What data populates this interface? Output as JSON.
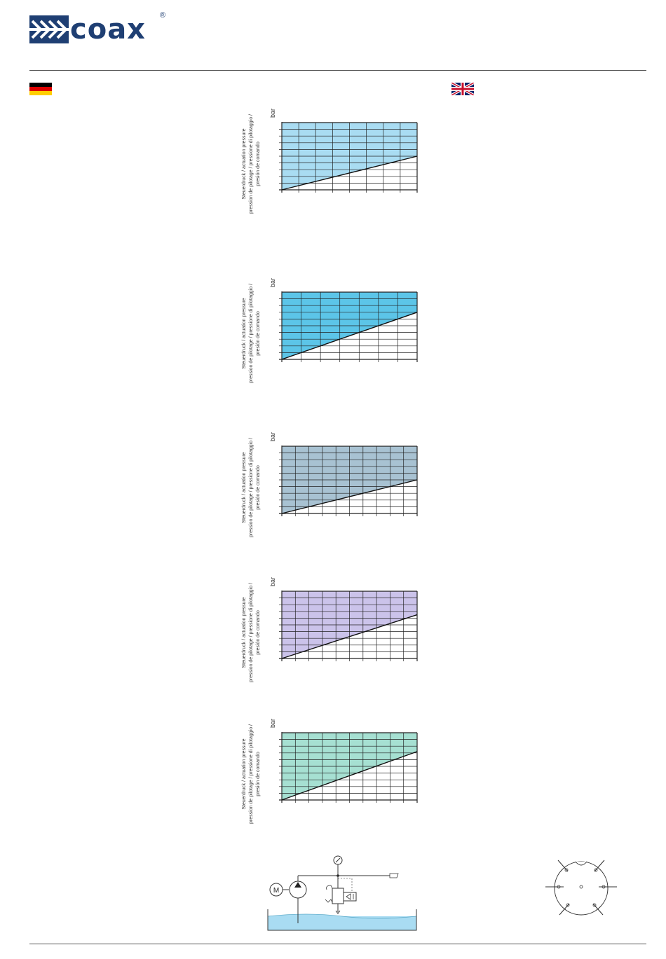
{
  "header": {
    "logo_word": "coax",
    "logo_mark": "®",
    "brand_color": "#1f3f73"
  },
  "flags": [
    {
      "lang": "de",
      "icon": "flag-germany-icon"
    },
    {
      "lang": "en",
      "icon": "flag-uk-icon"
    }
  ],
  "charts": [
    {
      "ylabel_line1": "Steuerdruck / actuation pressure",
      "ylabel_line2": "pression de pilotage / pressione di pilotaggio /",
      "ylabel_line3": "presión de comando",
      "unit": "bar",
      "fill_color": "#a9dcf2",
      "x_divisions": 8,
      "y_divisions": 10,
      "line_end_fraction": 0.5
    },
    {
      "ylabel_line1": "Steuerdruck / actuation pressure",
      "ylabel_line2": "pression de pilotage / pressione di pilotaggio /",
      "ylabel_line3": "presión de comando",
      "unit": "bar",
      "fill_color": "#5cc5e8",
      "x_divisions": 7,
      "y_divisions": 10,
      "line_end_fraction": 0.7
    },
    {
      "ylabel_line1": "Steuerdruck / actuation pressure",
      "ylabel_line2": "pression de pilotage / pressione di pilotaggio /",
      "ylabel_line3": "presión de comando",
      "unit": "bar",
      "fill_color": "#a8c2d2",
      "x_divisions": 10,
      "y_divisions": 10,
      "line_end_fraction": 0.5
    },
    {
      "ylabel_line1": "Steuerdruck / actuation pressure",
      "ylabel_line2": "pression de pilotage / pressione di pilotaggio /",
      "ylabel_line3": "presión de comando",
      "unit": "bar",
      "fill_color": "#cbc3ea",
      "x_divisions": 10,
      "y_divisions": 10,
      "line_end_fraction": 0.65
    },
    {
      "ylabel_line1": "Steuerdruck / actuation pressure",
      "ylabel_line2": "pression de pilotage / pressione di pilotaggio /",
      "ylabel_line3": "presión de comando",
      "unit": "bar",
      "fill_color": "#a6e0d2",
      "x_divisions": 10,
      "y_divisions": 10,
      "line_end_fraction": 0.72
    }
  ],
  "schematic": {
    "motor_label": "M",
    "water_color": "#a9dcf2"
  },
  "connector": {
    "icon": "connector-pin-icon"
  }
}
